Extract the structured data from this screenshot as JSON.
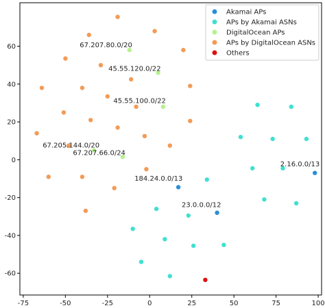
{
  "chart_data": {
    "type": "scatter",
    "title": "",
    "xlabel": "",
    "ylabel": "",
    "xlim": [
      -77,
      102
    ],
    "ylim": [
      -71.5,
      83
    ],
    "xticks": [
      -75,
      -50,
      -25,
      0,
      25,
      50,
      75,
      100
    ],
    "yticks": [
      -60,
      -40,
      -20,
      0,
      20,
      40,
      60
    ],
    "grid": false,
    "legend_position": "top-right",
    "series": [
      {
        "name": "Akamai APs",
        "color": "#2b8fd9",
        "points": [
          [
            17,
            -14.5
          ],
          [
            40,
            -28
          ],
          [
            98,
            -7
          ]
        ]
      },
      {
        "name": "APs by Akamai ASNs",
        "color": "#40e0d0",
        "points": [
          [
            64,
            29
          ],
          [
            84,
            28
          ],
          [
            54,
            12
          ],
          [
            73,
            11
          ],
          [
            93,
            11
          ],
          [
            61,
            -4.5
          ],
          [
            79,
            -4.5
          ],
          [
            34,
            -10.5
          ],
          [
            68,
            -21
          ],
          [
            87,
            -23
          ],
          [
            4,
            -26
          ],
          [
            23,
            -29.5
          ],
          [
            -10,
            -36.5
          ],
          [
            9,
            -42
          ],
          [
            26,
            -45.5
          ],
          [
            44,
            -45
          ],
          [
            -5,
            -54
          ],
          [
            12,
            -61.5
          ]
        ]
      },
      {
        "name": "DigitalOcean APs",
        "color": "#b6f18f",
        "points": [
          [
            -12,
            58
          ],
          [
            5,
            46
          ],
          [
            8,
            28
          ],
          [
            -16,
            1.5
          ],
          [
            -33,
            5
          ]
        ]
      },
      {
        "name": "APs by DigitalOcean ASNs",
        "color": "#f29b57",
        "points": [
          [
            -19,
            75.5
          ],
          [
            -36,
            66
          ],
          [
            3,
            68
          ],
          [
            20,
            58
          ],
          [
            -50,
            53.5
          ],
          [
            -29,
            50
          ],
          [
            -11,
            42.5
          ],
          [
            -40,
            38
          ],
          [
            -64,
            38
          ],
          [
            24,
            39
          ],
          [
            -25,
            33.5
          ],
          [
            -8,
            28
          ],
          [
            -51,
            25
          ],
          [
            -35,
            21
          ],
          [
            24,
            20.5
          ],
          [
            -19,
            17
          ],
          [
            -67,
            14
          ],
          [
            -3,
            12.5
          ],
          [
            -48,
            7.5
          ],
          [
            12,
            7.5
          ],
          [
            -60,
            -9
          ],
          [
            -40,
            -9
          ],
          [
            -2,
            -5
          ],
          [
            -21,
            -15
          ],
          [
            -38,
            -27
          ]
        ]
      },
      {
        "name": "Others",
        "color": "#dd1111",
        "points": [
          [
            33,
            -63.5
          ]
        ]
      }
    ],
    "annotations": [
      {
        "text": "67.207.80.0/20",
        "x": -41.5,
        "y": 59.5
      },
      {
        "text": "45.55.120.0/22",
        "x": -24.5,
        "y": 47
      },
      {
        "text": "45.55.100.0/22",
        "x": -21.5,
        "y": 30
      },
      {
        "text": "67.205.144.0/20",
        "x": -63.5,
        "y": 6.5
      },
      {
        "text": "67.207.66.0/24",
        "x": -45.5,
        "y": 2.5
      },
      {
        "text": "184.24.0.0/13",
        "x": -9,
        "y": -11
      },
      {
        "text": "23.0.0.0/12",
        "x": 19,
        "y": -25
      },
      {
        "text": "2.16.0.0/13",
        "x": 77.5,
        "y": -3.5
      }
    ]
  }
}
